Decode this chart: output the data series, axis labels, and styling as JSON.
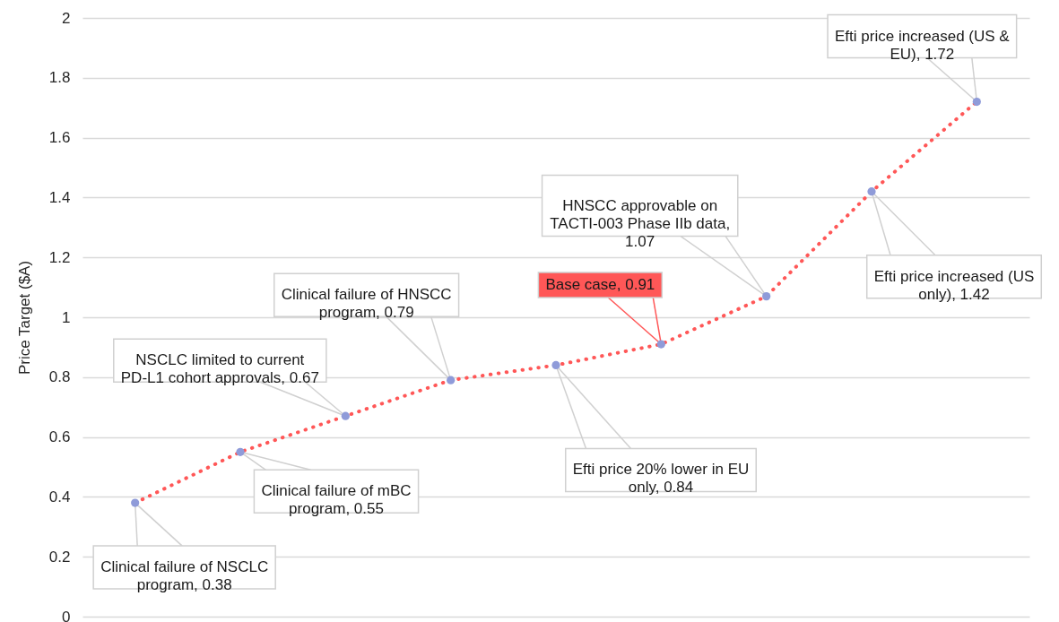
{
  "chart_data": {
    "type": "line",
    "ylabel": "Price Target ($A)",
    "categories": [
      null,
      null,
      null,
      null,
      null,
      null,
      null,
      null,
      null
    ],
    "series": [
      {
        "color": "#ff5757",
        "colors": [
          "#8f9bd9",
          "#8f9bd9",
          "#8f9bd9",
          "#8f9bd9",
          "#8f9bd9",
          "#8f9bd9",
          "#8f9bd9",
          "#8f9bd9",
          "#8f9bd9"
        ],
        "values": [
          0.38,
          0.55,
          0.67,
          0.79,
          0.84,
          0.91,
          1.07,
          1.42,
          1.72
        ],
        "value_labels": [
          "Clinical failure of NSCLC program, 0.38",
          "Clinical failure of mBC program, 0.55",
          "NSCLC limited to current PD-L1 cohort approvals, 0.67",
          "Clinical failure of HNSCC program, 0.79",
          "Efti price 20% lower in EU only, 0.84",
          "Base case, 0.91",
          "HNSCC approvable on TACTI-003 Phase IIb data, 1.07",
          "Efti price increased (US only), 1.42",
          "Efti price increased (US & EU), 1.72"
        ]
      }
    ],
    "ylim": [
      0,
      2
    ],
    "yticks": [
      0,
      0.2,
      0.4,
      0.6,
      0.8,
      1,
      1.2,
      1.4,
      1.6,
      1.8,
      2
    ],
    "grid": "y",
    "tick_labels": "y",
    "marker": "circle",
    "line_style": "dotted"
  }
}
